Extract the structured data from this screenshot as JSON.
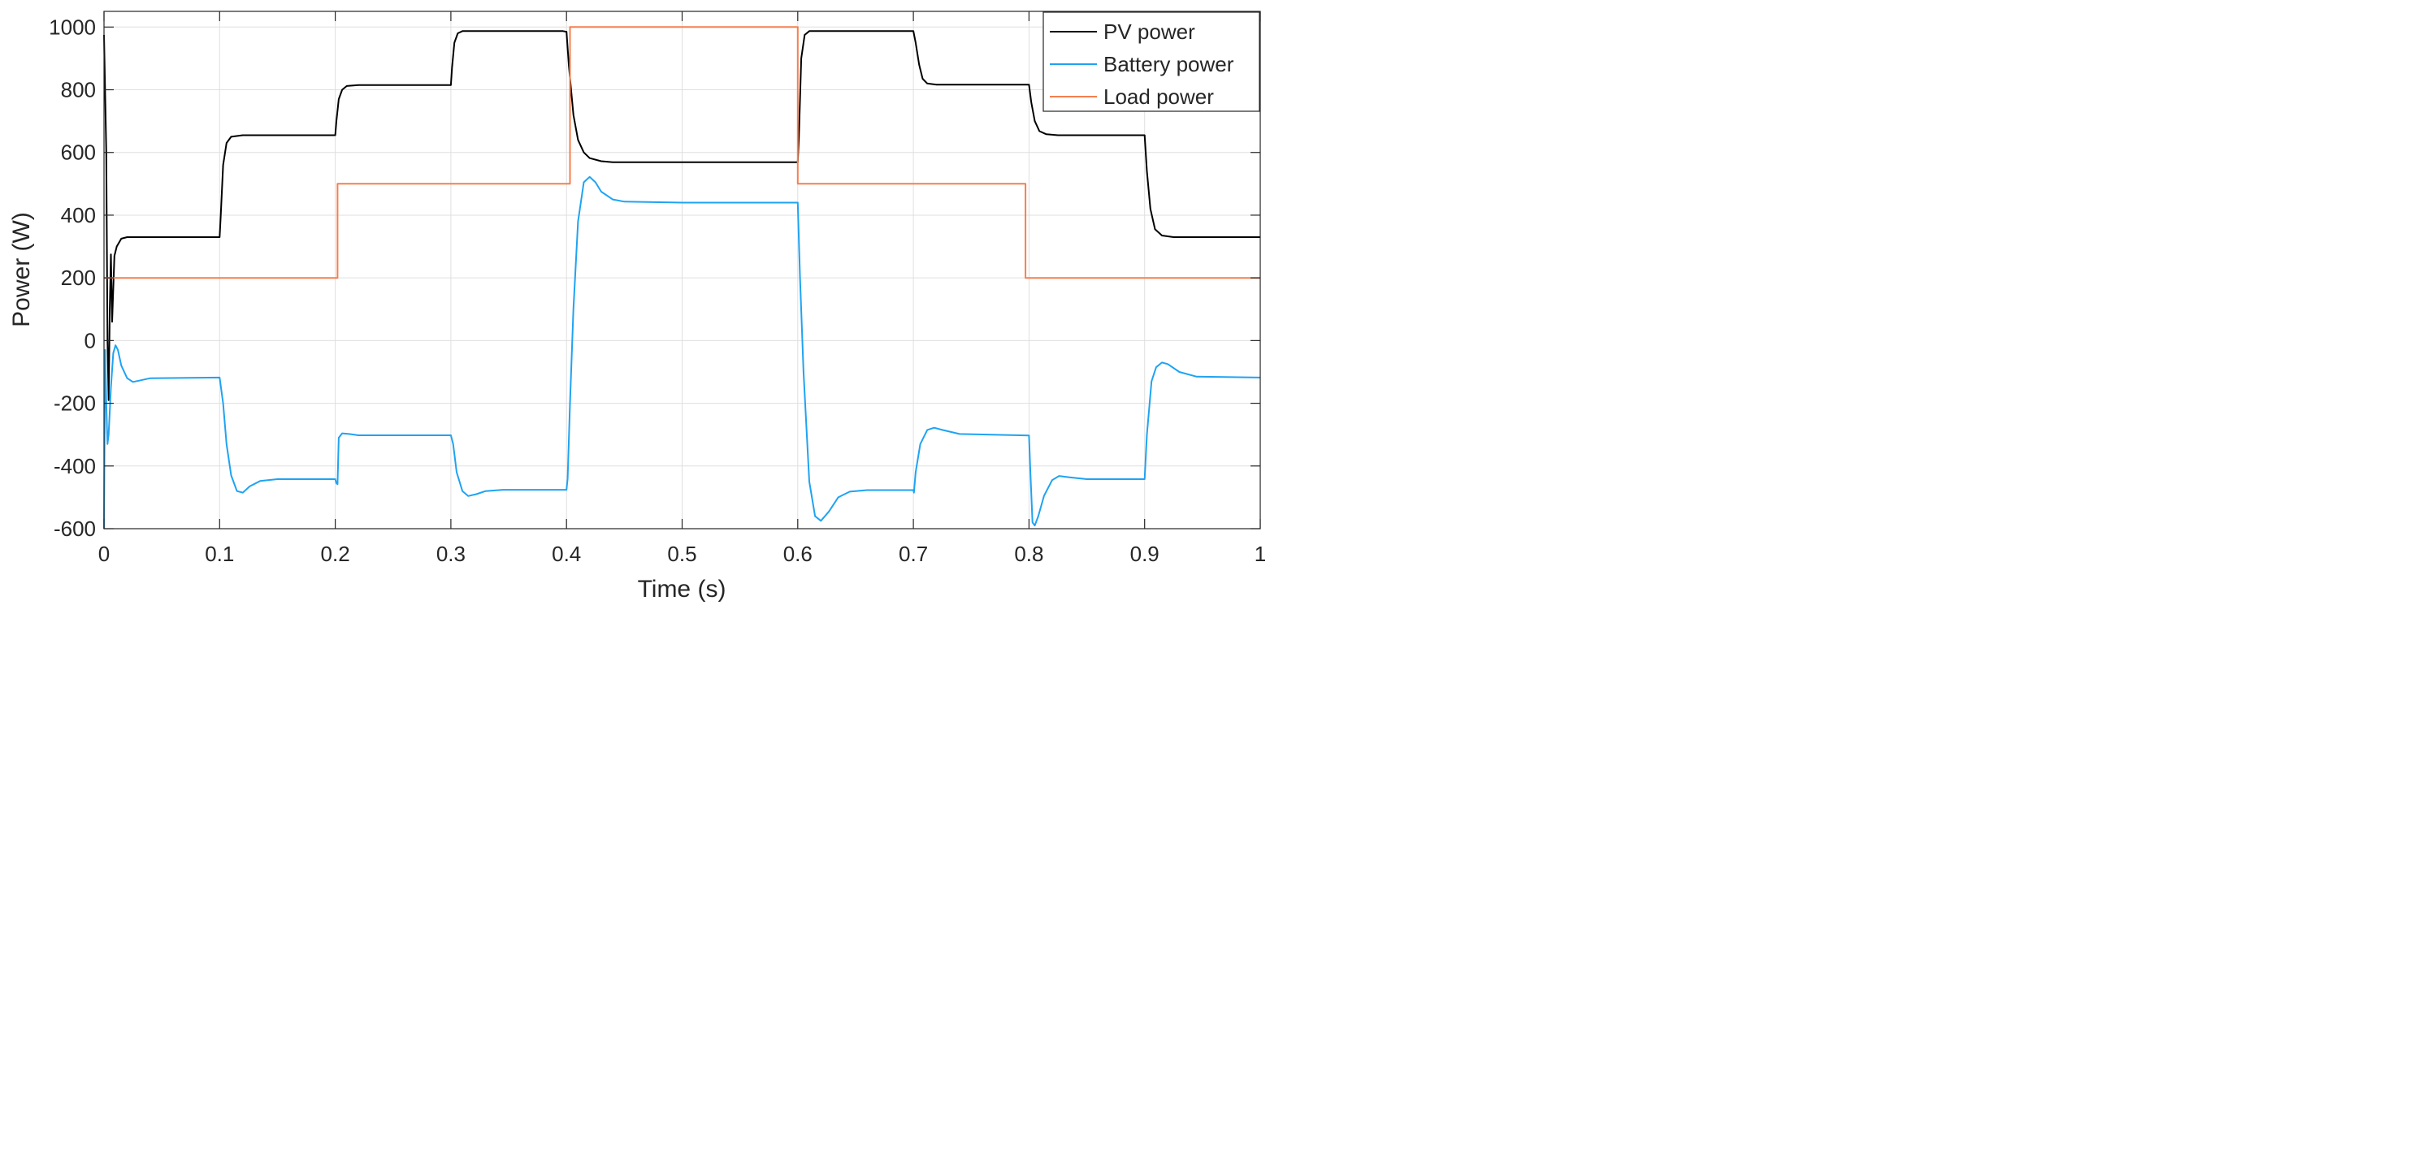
{
  "chart_data": {
    "type": "line",
    "xlabel": "Time (s)",
    "ylabel": "Power (W)",
    "xlim": [
      0,
      1
    ],
    "ylim": [
      -600,
      1050
    ],
    "xticks": [
      "0",
      "0.1",
      "0.2",
      "0.3",
      "0.4",
      "0.5",
      "0.6",
      "0.7",
      "0.8",
      "0.9",
      "1"
    ],
    "yticks": [
      "-600",
      "-400",
      "-200",
      "0",
      "200",
      "400",
      "600",
      "800",
      "1000"
    ],
    "xtick_values": [
      0,
      0.1,
      0.2,
      0.3,
      0.4,
      0.5,
      0.6,
      0.7,
      0.8,
      0.9,
      1
    ],
    "ytick_values": [
      -600,
      -400,
      -200,
      0,
      200,
      400,
      600,
      800,
      1000
    ],
    "grid": true,
    "legend_position": "top-right",
    "series": [
      {
        "name": "PV power",
        "color": "#000000",
        "points": [
          [
            0,
            975
          ],
          [
            0.002,
            600
          ],
          [
            0.003,
            0
          ],
          [
            0.004,
            -190
          ],
          [
            0.005,
            100
          ],
          [
            0.006,
            275
          ],
          [
            0.007,
            60
          ],
          [
            0.009,
            270
          ],
          [
            0.011,
            300
          ],
          [
            0.015,
            325
          ],
          [
            0.02,
            330
          ],
          [
            0.1,
            330
          ],
          [
            0.101,
            400
          ],
          [
            0.103,
            560
          ],
          [
            0.106,
            630
          ],
          [
            0.11,
            650
          ],
          [
            0.12,
            655
          ],
          [
            0.2,
            655
          ],
          [
            0.201,
            700
          ],
          [
            0.203,
            770
          ],
          [
            0.206,
            800
          ],
          [
            0.21,
            812
          ],
          [
            0.22,
            815
          ],
          [
            0.3,
            815
          ],
          [
            0.301,
            870
          ],
          [
            0.303,
            950
          ],
          [
            0.306,
            980
          ],
          [
            0.31,
            987
          ],
          [
            0.397,
            987
          ],
          [
            0.4,
            985
          ],
          [
            0.402,
            880
          ],
          [
            0.406,
            720
          ],
          [
            0.41,
            640
          ],
          [
            0.415,
            600
          ],
          [
            0.42,
            582
          ],
          [
            0.43,
            572
          ],
          [
            0.44,
            569
          ],
          [
            0.5,
            569
          ],
          [
            0.6,
            569
          ],
          [
            0.601,
            650
          ],
          [
            0.603,
            900
          ],
          [
            0.606,
            975
          ],
          [
            0.61,
            987
          ],
          [
            0.7,
            987
          ],
          [
            0.702,
            950
          ],
          [
            0.705,
            880
          ],
          [
            0.708,
            835
          ],
          [
            0.712,
            820
          ],
          [
            0.72,
            816
          ],
          [
            0.8,
            816
          ],
          [
            0.802,
            760
          ],
          [
            0.805,
            700
          ],
          [
            0.809,
            668
          ],
          [
            0.815,
            658
          ],
          [
            0.825,
            655
          ],
          [
            0.9,
            655
          ],
          [
            0.902,
            540
          ],
          [
            0.905,
            420
          ],
          [
            0.909,
            355
          ],
          [
            0.915,
            335
          ],
          [
            0.925,
            330
          ],
          [
            1,
            330
          ]
        ]
      },
      {
        "name": "Battery power",
        "color": "#1fa3f2",
        "points": [
          [
            0,
            -600
          ],
          [
            0.001,
            -30
          ],
          [
            0.002,
            -200
          ],
          [
            0.003,
            -330
          ],
          [
            0.004,
            -300
          ],
          [
            0.006,
            -150
          ],
          [
            0.008,
            -40
          ],
          [
            0.01,
            -15
          ],
          [
            0.012,
            -30
          ],
          [
            0.015,
            -80
          ],
          [
            0.02,
            -120
          ],
          [
            0.025,
            -132
          ],
          [
            0.03,
            -128
          ],
          [
            0.04,
            -120
          ],
          [
            0.1,
            -118
          ],
          [
            0.103,
            -200
          ],
          [
            0.106,
            -330
          ],
          [
            0.11,
            -430
          ],
          [
            0.115,
            -480
          ],
          [
            0.12,
            -485
          ],
          [
            0.126,
            -465
          ],
          [
            0.135,
            -448
          ],
          [
            0.15,
            -442
          ],
          [
            0.2,
            -442
          ],
          [
            0.201,
            -455
          ],
          [
            0.202,
            -458
          ],
          [
            0.203,
            -310
          ],
          [
            0.206,
            -296
          ],
          [
            0.212,
            -298
          ],
          [
            0.22,
            -302
          ],
          [
            0.3,
            -302
          ],
          [
            0.302,
            -330
          ],
          [
            0.305,
            -420
          ],
          [
            0.31,
            -480
          ],
          [
            0.315,
            -496
          ],
          [
            0.322,
            -490
          ],
          [
            0.33,
            -480
          ],
          [
            0.345,
            -476
          ],
          [
            0.4,
            -476
          ],
          [
            0.401,
            -440
          ],
          [
            0.403,
            -200
          ],
          [
            0.406,
            100
          ],
          [
            0.41,
            380
          ],
          [
            0.415,
            505
          ],
          [
            0.42,
            522
          ],
          [
            0.425,
            505
          ],
          [
            0.43,
            475
          ],
          [
            0.44,
            450
          ],
          [
            0.45,
            443
          ],
          [
            0.5,
            440
          ],
          [
            0.6,
            440
          ],
          [
            0.602,
            200
          ],
          [
            0.605,
            -100
          ],
          [
            0.61,
            -450
          ],
          [
            0.615,
            -560
          ],
          [
            0.62,
            -575
          ],
          [
            0.627,
            -545
          ],
          [
            0.635,
            -500
          ],
          [
            0.645,
            -482
          ],
          [
            0.66,
            -477
          ],
          [
            0.7,
            -477
          ],
          [
            0.7005,
            -485
          ],
          [
            0.702,
            -420
          ],
          [
            0.706,
            -330
          ],
          [
            0.712,
            -285
          ],
          [
            0.718,
            -278
          ],
          [
            0.725,
            -285
          ],
          [
            0.74,
            -298
          ],
          [
            0.8,
            -303
          ],
          [
            0.801,
            -400
          ],
          [
            0.803,
            -580
          ],
          [
            0.805,
            -590
          ],
          [
            0.808,
            -560
          ],
          [
            0.813,
            -495
          ],
          [
            0.82,
            -445
          ],
          [
            0.826,
            -432
          ],
          [
            0.835,
            -436
          ],
          [
            0.85,
            -442
          ],
          [
            0.9,
            -442
          ],
          [
            0.902,
            -300
          ],
          [
            0.906,
            -130
          ],
          [
            0.91,
            -85
          ],
          [
            0.915,
            -70
          ],
          [
            0.92,
            -75
          ],
          [
            0.93,
            -100
          ],
          [
            0.945,
            -115
          ],
          [
            1,
            -118
          ]
        ]
      },
      {
        "name": "Load power",
        "color": "#f57f4f",
        "points": [
          [
            0,
            200
          ],
          [
            0.202,
            200
          ],
          [
            0.202,
            500
          ],
          [
            0.403,
            500
          ],
          [
            0.403,
            1000
          ],
          [
            0.6,
            1000
          ],
          [
            0.6,
            500
          ],
          [
            0.797,
            500
          ],
          [
            0.797,
            200
          ],
          [
            1,
            200
          ]
        ]
      }
    ]
  }
}
